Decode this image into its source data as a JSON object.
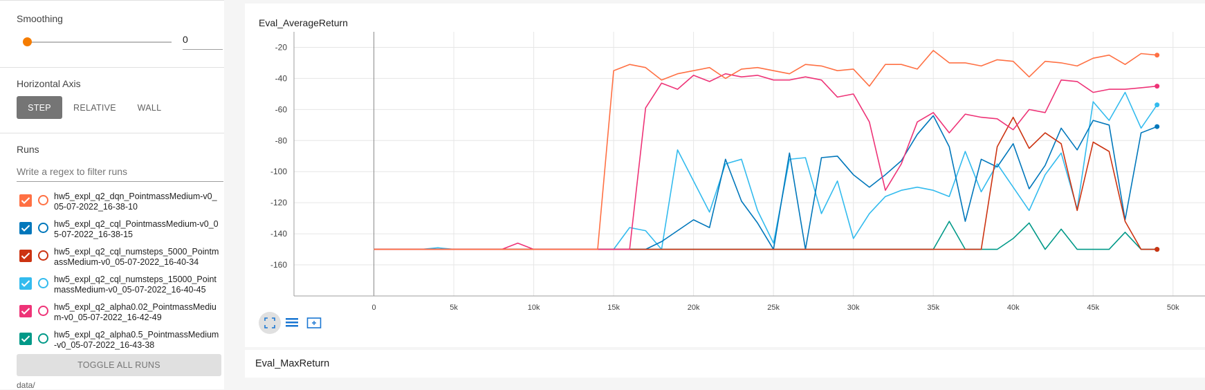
{
  "sidebar": {
    "smoothing": {
      "title": "Smoothing",
      "value": "0",
      "slider_fraction": 0
    },
    "horizontal_axis": {
      "title": "Horizontal Axis",
      "buttons": [
        {
          "label": "STEP",
          "active": true
        },
        {
          "label": "RELATIVE",
          "active": false
        },
        {
          "label": "WALL",
          "active": false
        }
      ]
    },
    "runs": {
      "title": "Runs",
      "filter_placeholder": "Write a regex to filter runs",
      "items": [
        {
          "line1": "hw5_expl_q2_dqn_PointmassMedium-v0_",
          "line2": "05-07-2022_16-38-10",
          "color": "#ff7043",
          "checked": true
        },
        {
          "line1": "hw5_expl_q2_cql_PointmassMedium-v0_0",
          "line2": "5-07-2022_16-38-15",
          "color": "#0077bb",
          "checked": true
        },
        {
          "line1": "hw5_expl_q2_cql_numsteps_5000_Pointm",
          "line2": "assMedium-v0_05-07-2022_16-40-34",
          "color": "#cc3311",
          "checked": true
        },
        {
          "line1": "hw5_expl_q2_cql_numsteps_15000_Point",
          "line2": "massMedium-v0_05-07-2022_16-40-45",
          "color": "#33bbee",
          "checked": true
        },
        {
          "line1": "hw5_expl_q2_alpha0.02_PointmassMediu",
          "line2": "m-v0_05-07-2022_16-42-49",
          "color": "#ee3377",
          "checked": true
        },
        {
          "line1": "hw5_expl_q2_alpha0.5_PointmassMedium",
          "line2": "-v0_05-07-2022_16-43-38",
          "color": "#009988",
          "checked": true
        }
      ],
      "toggle_all_label": "TOGGLE ALL RUNS",
      "data_dir": "data/"
    }
  },
  "cards": {
    "first_title": "Eval_AverageReturn",
    "second_title": "Eval_MaxReturn"
  },
  "toolbar": {
    "icons": [
      "fit-domain-icon",
      "data-table-icon",
      "toggle-y-axis-icon"
    ]
  },
  "chart_data": {
    "type": "line",
    "title": "Eval_AverageReturn",
    "xlabel": "",
    "ylabel": "",
    "xlim": [
      -5000,
      52000
    ],
    "ylim": [
      -180,
      -10
    ],
    "x_ticks": [
      0,
      5000,
      10000,
      15000,
      20000,
      25000,
      30000,
      35000,
      40000,
      45000,
      50000
    ],
    "x_tick_labels": [
      "0",
      "5k",
      "10k",
      "15k",
      "20k",
      "25k",
      "30k",
      "35k",
      "40k",
      "45k",
      "50k"
    ],
    "y_ticks": [
      -20,
      -40,
      -60,
      -80,
      -100,
      -120,
      -140,
      -160
    ],
    "y_tick_labels": [
      "-20",
      "-40",
      "-60",
      "-80",
      "-100",
      "-120",
      "-140",
      "-160"
    ],
    "grid": true,
    "series": [
      {
        "name": "hw5_expl_q2_alpha0.5_PointmassMedium-v0_05-07-2022_16-43-38",
        "color": "#009988",
        "x": [
          0,
          1000,
          2000,
          3000,
          4000,
          5000,
          6000,
          7000,
          8000,
          9000,
          10000,
          11000,
          12000,
          13000,
          14000,
          15000,
          16000,
          17000,
          18000,
          19000,
          20000,
          21000,
          22000,
          23000,
          24000,
          25000,
          26000,
          27000,
          28000,
          29000,
          30000,
          31000,
          32000,
          33000,
          34000,
          35000,
          36000,
          37000,
          38000,
          39000,
          40000,
          41000,
          42000,
          43000,
          44000,
          45000,
          46000,
          47000,
          48000,
          49000
        ],
        "y": [
          -150,
          -150,
          -150,
          -150,
          -150,
          -150,
          -150,
          -150,
          -150,
          -150,
          -150,
          -150,
          -150,
          -150,
          -150,
          -150,
          -150,
          -150,
          -150,
          -150,
          -150,
          -150,
          -150,
          -150,
          -150,
          -150,
          -150,
          -150,
          -150,
          -150,
          -150,
          -150,
          -150,
          -150,
          -150,
          -150,
          -132,
          -150,
          -150,
          -150,
          -143,
          -133,
          -150,
          -137,
          -150,
          -150,
          -150,
          -139,
          -150,
          -150
        ]
      },
      {
        "name": "hw5_expl_q2_cql_numsteps_15000_PointmassMedium-v0_05-07-2022_16-40-45",
        "color": "#33bbee",
        "x": [
          0,
          1000,
          2000,
          3000,
          4000,
          5000,
          6000,
          7000,
          8000,
          9000,
          10000,
          11000,
          12000,
          13000,
          14000,
          15000,
          16000,
          17000,
          18000,
          19000,
          20000,
          21000,
          22000,
          23000,
          24000,
          25000,
          26000,
          27000,
          28000,
          29000,
          30000,
          31000,
          32000,
          33000,
          34000,
          35000,
          36000,
          37000,
          38000,
          39000,
          40000,
          41000,
          42000,
          43000,
          44000,
          45000,
          46000,
          47000,
          48000,
          49000
        ],
        "y": [
          -150,
          -150,
          -150,
          -150,
          -149,
          -150,
          -150,
          -150,
          -150,
          -150,
          -150,
          -150,
          -150,
          -150,
          -150,
          -150,
          -136,
          -138,
          -150,
          -86,
          -106,
          -126,
          -95,
          -92,
          -125,
          -146,
          -92,
          -91,
          -127,
          -106,
          -143,
          -127,
          -116,
          -112,
          -110,
          -112,
          -116,
          -87,
          -113,
          -95,
          -110,
          -125,
          -102,
          -88,
          -124,
          -55,
          -67,
          -49,
          -72,
          -57
        ]
      },
      {
        "name": "hw5_expl_q2_cql_PointmassMedium-v0_05-07-2022_16-38-15",
        "color": "#0077bb",
        "x": [
          0,
          1000,
          2000,
          3000,
          4000,
          5000,
          6000,
          7000,
          8000,
          9000,
          10000,
          11000,
          12000,
          13000,
          14000,
          15000,
          16000,
          17000,
          18000,
          19000,
          20000,
          21000,
          22000,
          23000,
          24000,
          25000,
          26000,
          27000,
          28000,
          29000,
          30000,
          31000,
          32000,
          33000,
          34000,
          35000,
          36000,
          37000,
          38000,
          39000,
          40000,
          41000,
          42000,
          43000,
          44000,
          45000,
          46000,
          47000,
          48000,
          49000
        ],
        "y": [
          -150,
          -150,
          -150,
          -150,
          -150,
          -150,
          -150,
          -150,
          -150,
          -150,
          -150,
          -150,
          -150,
          -150,
          -150,
          -150,
          -150,
          -150,
          -145,
          -138,
          -131,
          -136,
          -92,
          -119,
          -133,
          -150,
          -88,
          -150,
          -91,
          -90,
          -102,
          -110,
          -102,
          -93,
          -76,
          -64,
          -84,
          -132,
          -92,
          -97,
          -82,
          -111,
          -96,
          -72,
          -86,
          -67,
          -70,
          -131,
          -75,
          -71
        ]
      },
      {
        "name": "hw5_expl_q2_cql_numsteps_5000_PointmassMedium-v0_05-07-2022_16-40-34",
        "color": "#cc3311",
        "x": [
          0,
          1000,
          2000,
          3000,
          4000,
          5000,
          6000,
          7000,
          8000,
          9000,
          10000,
          11000,
          12000,
          13000,
          14000,
          15000,
          16000,
          17000,
          18000,
          19000,
          20000,
          21000,
          22000,
          23000,
          24000,
          25000,
          26000,
          27000,
          28000,
          29000,
          30000,
          31000,
          32000,
          33000,
          34000,
          35000,
          36000,
          37000,
          38000,
          39000,
          40000,
          41000,
          42000,
          43000,
          44000,
          45000,
          46000,
          47000,
          48000,
          49000
        ],
        "y": [
          -150,
          -150,
          -150,
          -150,
          -150,
          -150,
          -150,
          -150,
          -150,
          -150,
          -150,
          -150,
          -150,
          -150,
          -150,
          -150,
          -150,
          -150,
          -150,
          -150,
          -150,
          -150,
          -150,
          -150,
          -150,
          -150,
          -150,
          -150,
          -150,
          -150,
          -150,
          -150,
          -150,
          -150,
          -150,
          -150,
          -150,
          -150,
          -150,
          -84,
          -65,
          -85,
          -75,
          -82,
          -125,
          -81,
          -87,
          -132,
          -150,
          -150
        ]
      },
      {
        "name": "hw5_expl_q2_alpha0.02_PointmassMedium-v0_05-07-2022_16-42-49",
        "color": "#ee3377",
        "x": [
          0,
          1000,
          2000,
          3000,
          4000,
          5000,
          6000,
          7000,
          8000,
          9000,
          10000,
          11000,
          12000,
          13000,
          14000,
          15000,
          16000,
          17000,
          18000,
          19000,
          20000,
          21000,
          22000,
          23000,
          24000,
          25000,
          26000,
          27000,
          28000,
          29000,
          30000,
          31000,
          32000,
          33000,
          34000,
          35000,
          36000,
          37000,
          38000,
          39000,
          40000,
          41000,
          42000,
          43000,
          44000,
          45000,
          46000,
          47000,
          48000,
          49000
        ],
        "y": [
          -150,
          -150,
          -150,
          -150,
          -150,
          -150,
          -150,
          -150,
          -150,
          -146,
          -150,
          -150,
          -150,
          -150,
          -150,
          -150,
          -150,
          -59,
          -43,
          -47,
          -38,
          -42,
          -37,
          -39,
          -38,
          -41,
          -41,
          -39,
          -41,
          -52,
          -50,
          -68,
          -112,
          -95,
          -68,
          -62,
          -75,
          -63,
          -65,
          -66,
          -73,
          -60,
          -62,
          -41,
          -42,
          -49,
          -47,
          -47,
          -46,
          -45
        ]
      },
      {
        "name": "hw5_expl_q2_dqn_PointmassMedium-v0_05-07-2022_16-38-10",
        "color": "#ff7043",
        "x": [
          0,
          1000,
          2000,
          3000,
          4000,
          5000,
          6000,
          7000,
          8000,
          9000,
          10000,
          11000,
          12000,
          13000,
          14000,
          15000,
          16000,
          17000,
          18000,
          19000,
          20000,
          21000,
          22000,
          23000,
          24000,
          25000,
          26000,
          27000,
          28000,
          29000,
          30000,
          31000,
          32000,
          33000,
          34000,
          35000,
          36000,
          37000,
          38000,
          39000,
          40000,
          41000,
          42000,
          43000,
          44000,
          45000,
          46000,
          47000,
          48000,
          49000
        ],
        "y": [
          -150,
          -150,
          -150,
          -150,
          -150,
          -150,
          -150,
          -150,
          -150,
          -150,
          -150,
          -150,
          -150,
          -150,
          -150,
          -35,
          -31,
          -33,
          -41,
          -37,
          -35,
          -33,
          -40,
          -34,
          -33,
          -35,
          -37,
          -31,
          -32,
          -35,
          -34,
          -45,
          -31,
          -31,
          -34,
          -22,
          -30,
          -30,
          -32,
          -28,
          -29,
          -39,
          -29,
          -30,
          -32,
          -27,
          -25,
          -31,
          -24,
          -25
        ]
      }
    ]
  }
}
